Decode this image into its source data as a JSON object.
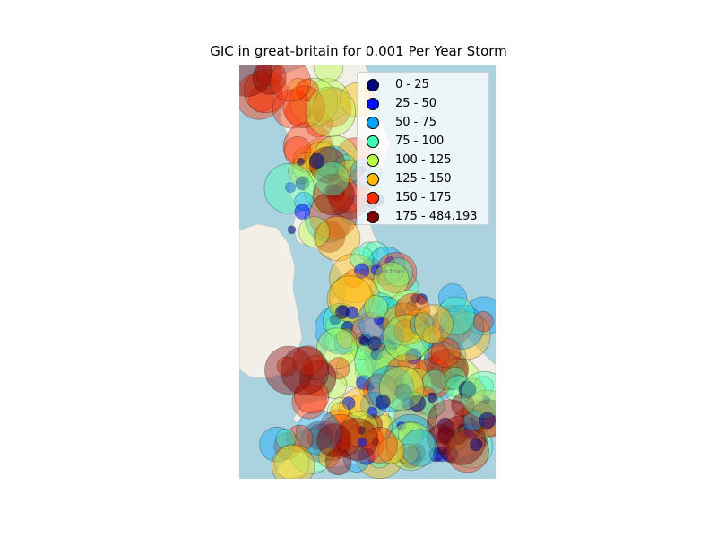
{
  "title": "GIC in great-britain for 0.001 Per Year Storm",
  "legend": [
    {
      "label": "0 - 25",
      "color": "#00007f"
    },
    {
      "label": "25 - 50",
      "color": "#0010ff"
    },
    {
      "label": "50 - 75",
      "color": "#00a4ff"
    },
    {
      "label": "75 - 100",
      "color": "#40ffb7"
    },
    {
      "label": "100 - 125",
      "color": "#b7ff40"
    },
    {
      "label": "125 - 150",
      "color": "#ffb900"
    },
    {
      "label": "150 - 175",
      "color": "#ff3000"
    },
    {
      "label": "175 - 484.193",
      "color": "#7f0000"
    }
  ],
  "colors": {
    "sea": "#aad3df",
    "land": "#f2efe9",
    "marker_edge": "#000000"
  },
  "map_labels": [
    "Great Britain"
  ]
}
